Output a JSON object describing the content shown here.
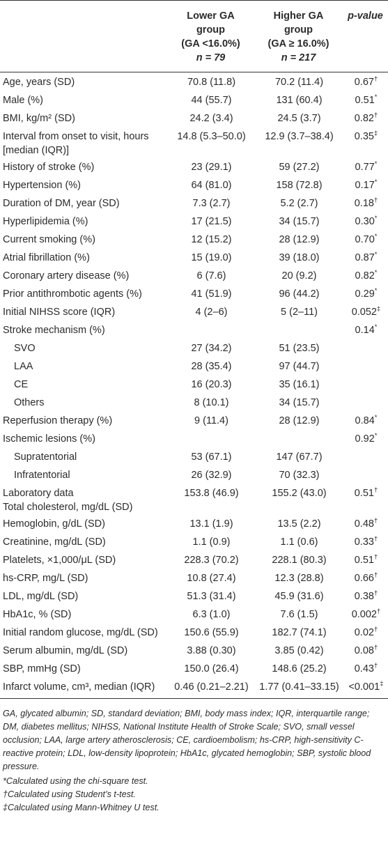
{
  "table": {
    "header": [
      [],
      [
        "Lower GA",
        "group",
        "(GA <16.0%)",
        "n = 79"
      ],
      [
        "Higher GA",
        "group",
        "(GA ≥ 16.0%)",
        "n = 217"
      ],
      [
        "p-value"
      ]
    ],
    "rows": [
      {
        "label": [
          "Age, years (SD)"
        ],
        "lower": "70.8 (11.8)",
        "higher": "70.2 (11.4)",
        "p": "0.67",
        "mark": "†"
      },
      {
        "label": [
          "Male (%)"
        ],
        "lower": "44 (55.7)",
        "higher": "131 (60.4)",
        "p": "0.51",
        "mark": "*"
      },
      {
        "label": [
          "BMI, kg/m² (SD)"
        ],
        "lower": "24.2 (3.4)",
        "higher": "24.5 (3.7)",
        "p": "0.82",
        "mark": "†"
      },
      {
        "label": [
          "Interval from onset to visit, hours",
          "[median (IQR)]"
        ],
        "lower": "14.8 (5.3–50.0)",
        "higher": "12.9 (3.7–38.4)",
        "p": "0.35",
        "mark": "‡"
      },
      {
        "label": [
          "History of stroke (%)"
        ],
        "lower": "23 (29.1)",
        "higher": "59 (27.2)",
        "p": "0.77",
        "mark": "*"
      },
      {
        "label": [
          "Hypertension (%)"
        ],
        "lower": "64 (81.0)",
        "higher": "158 (72.8)",
        "p": "0.17",
        "mark": "*"
      },
      {
        "label": [
          "Duration of DM, year (SD)"
        ],
        "lower": "7.3 (2.7)",
        "higher": "5.2 (2.7)",
        "p": "0.18",
        "mark": "†"
      },
      {
        "label": [
          "Hyperlipidemia (%)"
        ],
        "lower": "17 (21.5)",
        "higher": "34 (15.7)",
        "p": "0.30",
        "mark": "*"
      },
      {
        "label": [
          "Current smoking (%)"
        ],
        "lower": "12 (15.2)",
        "higher": "28 (12.9)",
        "p": "0.70",
        "mark": "*"
      },
      {
        "label": [
          "Atrial fibrillation (%)"
        ],
        "lower": "15 (19.0)",
        "higher": "39 (18.0)",
        "p": "0.87",
        "mark": "*"
      },
      {
        "label": [
          "Coronary artery disease (%)"
        ],
        "lower": "6 (7.6)",
        "higher": "20 (9.2)",
        "p": "0.82",
        "mark": "*"
      },
      {
        "label": [
          "Prior antithrombotic agents (%)"
        ],
        "lower": "41 (51.9)",
        "higher": "96 (44.2)",
        "p": "0.29",
        "mark": "*"
      },
      {
        "label": [
          "Initial NIHSS score (IQR)"
        ],
        "lower": "4 (2–6)",
        "higher": "5 (2–11)",
        "p": "0.052",
        "mark": "‡"
      },
      {
        "label": [
          "Stroke mechanism (%)"
        ],
        "p": "0.14",
        "mark": "*"
      },
      {
        "label": [
          "SVO"
        ],
        "indent": true,
        "lower": "27 (34.2)",
        "higher": "51 (23.5)"
      },
      {
        "label": [
          "LAA"
        ],
        "indent": true,
        "lower": "28 (35.4)",
        "higher": "97 (44.7)"
      },
      {
        "label": [
          "CE"
        ],
        "indent": true,
        "lower": "16 (20.3)",
        "higher": "35 (16.1)"
      },
      {
        "label": [
          "Others"
        ],
        "indent": true,
        "lower": "8 (10.1)",
        "higher": "34 (15.7)"
      },
      {
        "label": [
          "Reperfusion therapy (%)"
        ],
        "lower": "9 (11.4)",
        "higher": "28 (12.9)",
        "p": "0.84",
        "mark": "*"
      },
      {
        "label": [
          "Ischemic lesions (%)"
        ],
        "p": "0.92",
        "mark": "*"
      },
      {
        "label": [
          "Supratentorial"
        ],
        "indent": true,
        "lower": "53 (67.1)",
        "higher": "147 (67.7)"
      },
      {
        "label": [
          "Infratentorial"
        ],
        "indent": true,
        "lower": "26 (32.9)",
        "higher": "70 (32.3)"
      },
      {
        "label": [
          "Laboratory data",
          "Total cholesterol, mg/dL (SD)"
        ],
        "lower": "153.8 (46.9)",
        "higher": "155.2 (43.0)",
        "p": "0.51",
        "mark": "†"
      },
      {
        "label": [
          "Hemoglobin, g/dL (SD)"
        ],
        "lower": "13.1 (1.9)",
        "higher": "13.5 (2.2)",
        "p": "0.48",
        "mark": "†"
      },
      {
        "label": [
          "Creatinine, mg/dL (SD)"
        ],
        "lower": "1.1 (0.9)",
        "higher": "1.1 (0.6)",
        "p": "0.33",
        "mark": "†"
      },
      {
        "label": [
          "Platelets, ×1,000/μL (SD)"
        ],
        "lower": "228.3 (70.2)",
        "higher": "228.1 (80.3)",
        "p": "0.51",
        "mark": "†"
      },
      {
        "label": [
          "hs-CRP, mg/L (SD)"
        ],
        "lower": "10.8 (27.4)",
        "higher": "12.3 (28.8)",
        "p": "0.66",
        "mark": "†"
      },
      {
        "label": [
          "LDL, mg/dL (SD)"
        ],
        "lower": "51.3 (31.4)",
        "higher": "45.9 (31.6)",
        "p": "0.38",
        "mark": "†"
      },
      {
        "label": [
          "HbA1c, % (SD)"
        ],
        "lower": "6.3 (1.0)",
        "higher": "7.6 (1.5)",
        "p": "0.002",
        "mark": "†"
      },
      {
        "label": [
          "Initial random glucose, mg/dL (SD)"
        ],
        "lower": "150.6 (55.9)",
        "higher": "182.7 (74.1)",
        "p": "0.02",
        "mark": "†"
      },
      {
        "label": [
          "Serum albumin, mg/dL (SD)"
        ],
        "lower": "3.88 (0.30)",
        "higher": "3.85 (0.42)",
        "p": "0.08",
        "mark": "†"
      },
      {
        "label": [
          "SBP, mmHg (SD)"
        ],
        "lower": "150.0 (26.4)",
        "higher": "148.6 (25.2)",
        "p": "0.43",
        "mark": "†"
      },
      {
        "label": [
          "Infarct volume, cm³, median (IQR)"
        ],
        "lower": "0.46 (0.21–2.21)",
        "higher": "1.77 (0.41–33.15)",
        "p": "<0.001",
        "mark": "‡"
      }
    ]
  },
  "footnotes": {
    "abbreviations": "GA, glycated albumin; SD, standard deviation; BMI, body mass index; IQR, interquartile range; DM, diabetes mellitus; NIHSS, National Institute Health of Stroke Scale; SVO, small vessel occlusion; LAA, large artery atherosclerosis; CE, cardioembolism; hs-CRP, high-sensitivity C-reactive protein; LDL, low-density lipoprotein; HbA1c, glycated hemoglobin; SBP, systolic blood pressure.",
    "notes": [
      "*Calculated using the chi-square test.",
      "†Calculated using Student’s t-test.",
      "‡Calculated using Mann-Whitney U test."
    ]
  }
}
